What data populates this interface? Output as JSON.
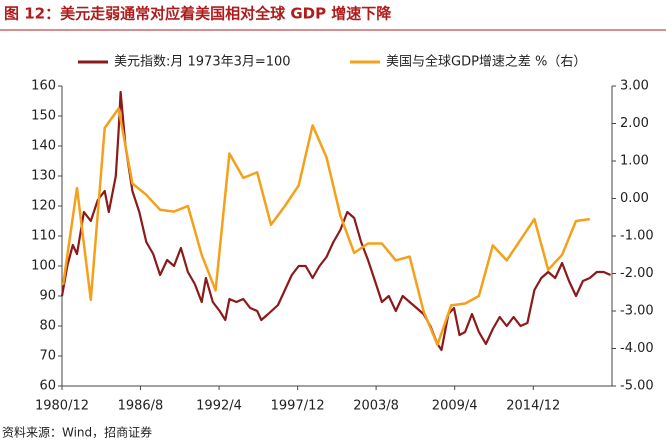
{
  "chart_data": {
    "type": "line",
    "title": "图 12：美元走弱通常对应着美国相对全球 GDP 增速下降",
    "source": "资料来源：Wind，招商证券",
    "xlim": [
      1980.92,
      2020.6
    ],
    "xticks": [
      {
        "value": 1980.92,
        "label": "1980/12"
      },
      {
        "value": 1986.58,
        "label": "1986/8"
      },
      {
        "value": 1992.25,
        "label": "1992/4"
      },
      {
        "value": 1997.92,
        "label": "1997/12"
      },
      {
        "value": 2003.58,
        "label": "2003/8"
      },
      {
        "value": 2009.25,
        "label": "2009/4"
      },
      {
        "value": 2014.92,
        "label": "2014/12"
      }
    ],
    "ylim": [
      60,
      160
    ],
    "yticks": [
      60,
      70,
      80,
      90,
      100,
      110,
      120,
      130,
      140,
      150,
      160
    ],
    "y2lim": [
      -5,
      3
    ],
    "y2ticks": [
      {
        "value": -5,
        "label": "-5.00"
      },
      {
        "value": -4,
        "label": "-4.00"
      },
      {
        "value": -3,
        "label": "-3.00"
      },
      {
        "value": -2,
        "label": "-2.00"
      },
      {
        "value": -1,
        "label": "-1.00"
      },
      {
        "value": 0,
        "label": "0.00"
      },
      {
        "value": 1,
        "label": "1.00"
      },
      {
        "value": 2,
        "label": "2.00"
      },
      {
        "value": 3,
        "label": "3.00"
      }
    ],
    "legend": "top",
    "series": [
      {
        "name": "美元指数:月 1973年3月=100",
        "color": "#8b1a1a",
        "axis": "y",
        "x": [
          1980.92,
          1981.3,
          1981.7,
          1982.0,
          1982.5,
          1983.0,
          1983.5,
          1984.0,
          1984.3,
          1984.8,
          1985.0,
          1985.15,
          1985.5,
          1986.0,
          1986.5,
          1987.0,
          1987.5,
          1988.0,
          1988.5,
          1989.0,
          1989.5,
          1990.0,
          1990.5,
          1991.0,
          1991.3,
          1991.8,
          1992.3,
          1992.7,
          1993.0,
          1993.5,
          1994.0,
          1994.5,
          1995.0,
          1995.3,
          1995.8,
          1996.5,
          1997.0,
          1997.5,
          1998.0,
          1998.5,
          1999.0,
          1999.5,
          2000.0,
          2000.5,
          2001.0,
          2001.5,
          2002.0,
          2002.5,
          2003.0,
          2003.5,
          2004.0,
          2004.5,
          2005.0,
          2005.5,
          2006.0,
          2006.5,
          2007.0,
          2007.5,
          2008.0,
          2008.3,
          2008.8,
          2009.2,
          2009.6,
          2010.0,
          2010.5,
          2011.0,
          2011.5,
          2012.0,
          2012.5,
          2013.0,
          2013.5,
          2014.0,
          2014.5,
          2015.0,
          2015.5,
          2016.0,
          2016.5,
          2017.0,
          2017.5,
          2018.0,
          2018.5,
          2019.0,
          2019.5,
          2020.0,
          2020.5
        ],
        "values": [
          90,
          100,
          107,
          104,
          118,
          115,
          122,
          125,
          118,
          130,
          145,
          158,
          140,
          125,
          118,
          108,
          104,
          97,
          102,
          100,
          106,
          98,
          94,
          88,
          96,
          88,
          85,
          82,
          89,
          88,
          89,
          86,
          85,
          82,
          84,
          87,
          92,
          97,
          100,
          100,
          96,
          100,
          103,
          108,
          112,
          118,
          116,
          108,
          102,
          95,
          88,
          90,
          85,
          90,
          88,
          86,
          84,
          80,
          74,
          72,
          84,
          86,
          77,
          78,
          84,
          78,
          74,
          79,
          83,
          80,
          83,
          80,
          81,
          92,
          96,
          98,
          96,
          101,
          95,
          90,
          95,
          96,
          98,
          98,
          97
        ]
      },
      {
        "name": "美国与全球GDP增速之差 %（右）",
        "color": "#f5a01a",
        "axis": "y2",
        "x": [
          1981,
          1982,
          1983,
          1984,
          1985,
          1986,
          1987,
          1988,
          1989,
          1990,
          1991,
          1992,
          1993,
          1994,
          1995,
          1996,
          1997,
          1998,
          1999,
          2000,
          2001,
          2002,
          2003,
          2004,
          2005,
          2006,
          2007,
          2008,
          2009,
          2010,
          2011,
          2012,
          2013,
          2014,
          2015,
          2016,
          2017,
          2018,
          2019
        ],
        "values": [
          -2.3,
          0.28,
          -2.7,
          1.88,
          2.4,
          0.4,
          0.1,
          -0.3,
          -0.35,
          -0.2,
          -1.5,
          -2.45,
          1.2,
          0.55,
          0.7,
          -0.7,
          -0.2,
          0.35,
          1.95,
          1.1,
          -0.45,
          -1.45,
          -1.2,
          -1.2,
          -1.65,
          -1.55,
          -3.0,
          -3.9,
          -2.85,
          -2.8,
          -2.6,
          -1.25,
          -1.65,
          -1.1,
          -0.55,
          -1.9,
          -1.5,
          -0.6,
          -0.55
        ]
      }
    ]
  }
}
